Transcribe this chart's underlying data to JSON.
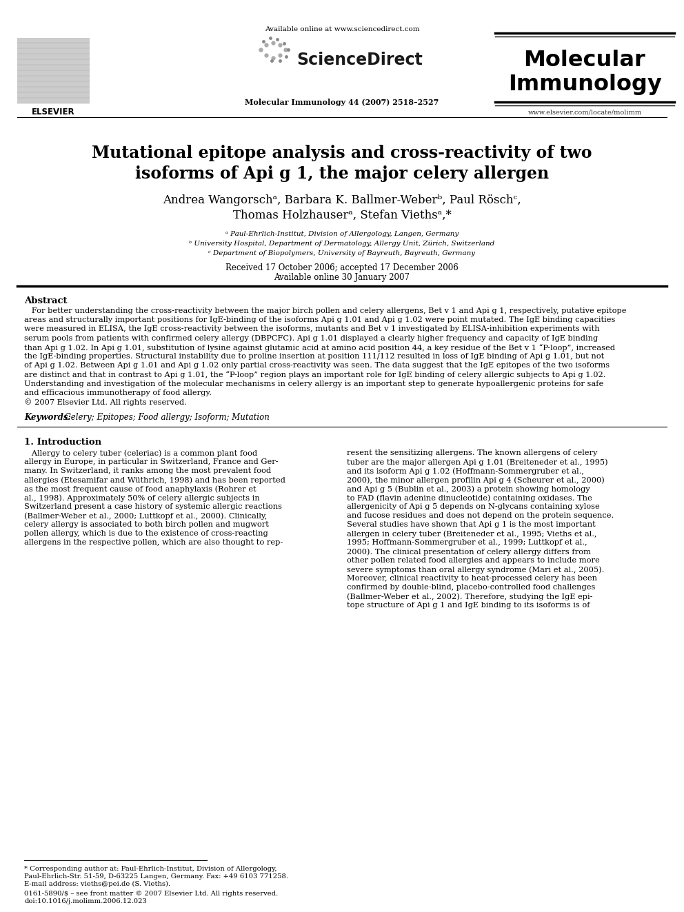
{
  "bg_color": "#ffffff",
  "top_margin_text": "Available online at www.sciencedirect.com",
  "journal_line": "Molecular Immunology 44 (2007) 2518–2527",
  "journal_name_line1": "Molecular",
  "journal_name_line2": "Immunology",
  "journal_url": "www.elsevier.com/locate/molimm",
  "elsevier_label": "ELSEVIER",
  "sciencedirect_label": "ScienceDirect",
  "title_line1": "Mutational epitope analysis and cross-reactivity of two",
  "title_line2": "isoforms of Api g 1, the major celery allergen",
  "authors_line1": "Andrea Wangorschᵃ, Barbara K. Ballmer-Weberᵇ, Paul Röschᶜ,",
  "authors_line2": "Thomas Holzhauserᵃ, Stefan Viethsᵃ,*",
  "affil_a": "ᵃ Paul-Ehrlich-Institut, Division of Allergology, Langen, Germany",
  "affil_b": "ᵇ University Hospital, Department of Dermatology, Allergy Unit, Zürich, Switzerland",
  "affil_c": "ᶜ Department of Biopolymers, University of Bayreuth, Bayreuth, Germany",
  "received": "Received 17 October 2006; accepted 17 December 2006",
  "available": "Available online 30 January 2007",
  "abstract_heading": "Abstract",
  "abstract_body": "   For better understanding the cross-reactivity between the major birch pollen and celery allergens, Bet v 1 and Api g 1, respectively, putative epitope\nareas and structurally important positions for IgE-binding of the isoforms Api g 1.01 and Api g 1.02 were point mutated. The IgE binding capacities\nwere measured in ELISA, the IgE cross-reactivity between the isoforms, mutants and Bet v 1 investigated by ELISA-inhibition experiments with\nserum pools from patients with confirmed celery allergy (DBPCFC). Api g 1.01 displayed a clearly higher frequency and capacity of IgE binding\nthan Api g 1.02. In Api g 1.01, substitution of lysine against glutamic acid at amino acid position 44, a key residue of the Bet v 1 “P-loop”, increased\nthe IgE-binding properties. Structural instability due to proline insertion at position 111/112 resulted in loss of IgE binding of Api g 1.01, but not\nof Api g 1.02. Between Api g 1.01 and Api g 1.02 only partial cross-reactivity was seen. The data suggest that the IgE epitopes of the two isoforms\nare distinct and that in contrast to Api g 1.01, the “P-loop” region plays an important role for IgE binding of celery allergic subjects to Api g 1.02.\nUnderstanding and investigation of the molecular mechanisms in celery allergy is an important step to generate hypoallergenic proteins for safe\nand efficacious immunotherapy of food allergy.\n© 2007 Elsevier Ltd. All rights reserved.",
  "keywords_label": "Keywords: ",
  "keywords_text": " Celery; Epitopes; Food allergy; Isoform; Mutation",
  "section1_heading": "1. Introduction",
  "intro_col1_lines": [
    "   Allergy to celery tuber (celeriac) is a common plant food",
    "allergy in Europe, in particular in Switzerland, France and Ger-",
    "many. In Switzerland, it ranks among the most prevalent food",
    "allergies (Etesamifar and Wüthrich, 1998) and has been reported",
    "as the most frequent cause of food anaphylaxis (Rohrer et",
    "al., 1998). Approximately 50% of celery allergic subjects in",
    "Switzerland present a case history of systemic allergic reactions",
    "(Ballmer-Weber et al., 2000; Luttkopf et al., 2000). Clinically,",
    "celery allergy is associated to both birch pollen and mugwort",
    "pollen allergy, which is due to the existence of cross-reacting",
    "allergens in the respective pollen, which are also thought to rep-"
  ],
  "intro_col2_lines": [
    "resent the sensitizing allergens. The known allergens of celery",
    "tuber are the major allergen Api g 1.01 (Breiteneder et al., 1995)",
    "and its isoform Api g 1.02 (Hoffmann-Sommergruber et al.,",
    "2000), the minor allergen profilin Api g 4 (Scheurer et al., 2000)",
    "and Api g 5 (Bublin et al., 2003) a protein showing homology",
    "to FAD (flavin adenine dinucleotide) containing oxidases. The",
    "allergenicity of Api g 5 depends on N-glycans containing xylose",
    "and fucose residues and does not depend on the protein sequence.",
    "Several studies have shown that Api g 1 is the most important",
    "allergen in celery tuber (Breiteneder et al., 1995; Vieths et al.,",
    "1995; Hoffmann-Sommergruber et al., 1999; Luttkopf et al.,",
    "2000). The clinical presentation of celery allergy differs from",
    "other pollen related food allergies and appears to include more",
    "severe symptoms than oral allergy syndrome (Mari et al., 2005).",
    "Moreover, clinical reactivity to heat-processed celery has been",
    "confirmed by double-blind, placebo-controlled food challenges",
    "(Ballmer-Weber et al., 2002). Therefore, studying the IgE epi-",
    "tope structure of Api g 1 and IgE binding to its isoforms is of"
  ],
  "footnote1_lines": [
    "* Corresponding author at: Paul-Ehrlich-Institut, Division of Allergology,",
    "Paul-Ehrlich-Str. 51-59, D-63225 Langen, Germany. Fax: +49 6103 771258.",
    "E-mail address: vieths@pei.de (S. Vieths)."
  ],
  "footnote2_lines": [
    "0161-5890/$ – see front matter © 2007 Elsevier Ltd. All rights reserved.",
    "doi:10.1016/j.molimm.2006.12.023"
  ]
}
